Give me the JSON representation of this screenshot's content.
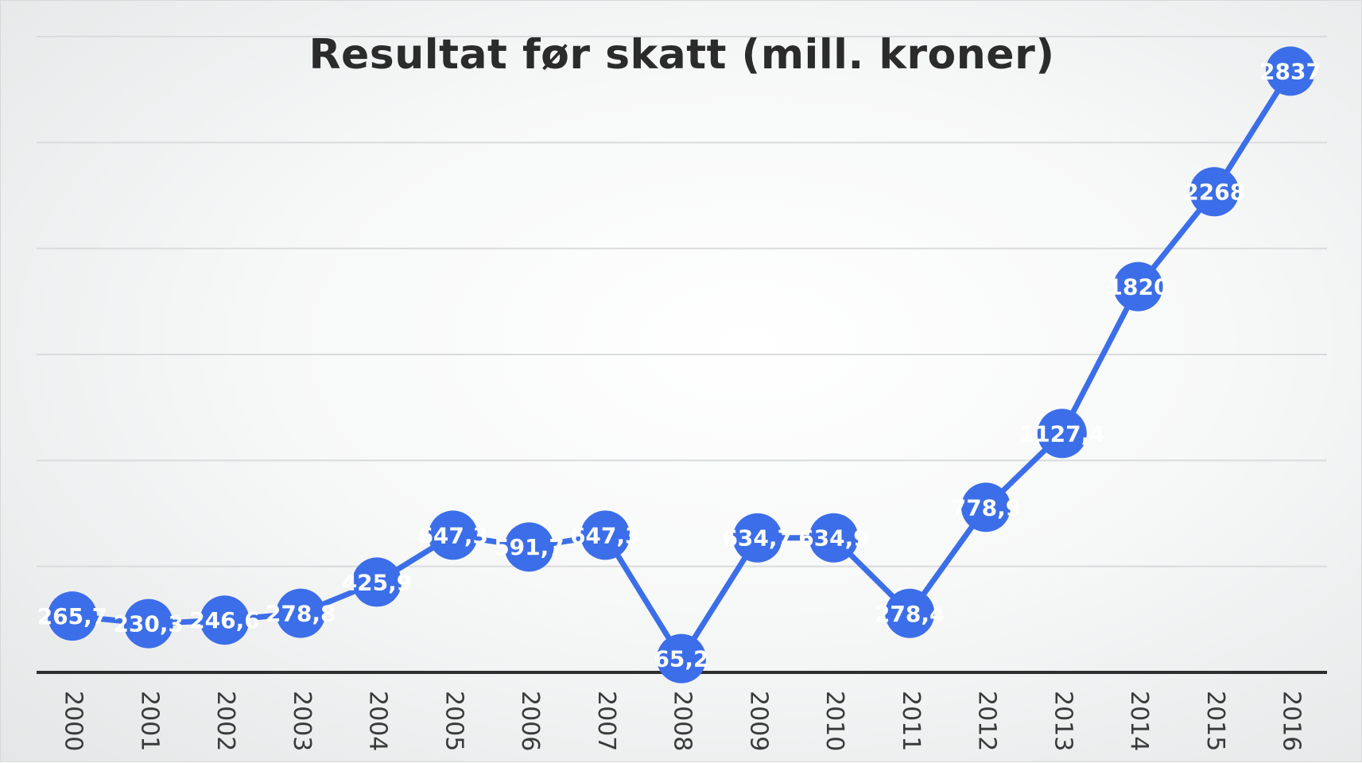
{
  "chart_data": {
    "type": "line",
    "title": "Resultat før skatt (mill. kroner)",
    "xlabel": "",
    "ylabel": "",
    "categories": [
      "2000",
      "2001",
      "2002",
      "2003",
      "2004",
      "2005",
      "2006",
      "2007",
      "2008",
      "2009",
      "2010",
      "2011",
      "2012",
      "2013",
      "2014",
      "2015",
      "2016"
    ],
    "values": [
      265.7,
      230.3,
      246.6,
      278.8,
      425.9,
      647.3,
      591.7,
      647.3,
      65.2,
      634.7,
      634.9,
      278.4,
      778.9,
      1127.4,
      1820,
      2268,
      2837
    ],
    "data_labels": [
      "265,7",
      "230,3",
      "246,6",
      "278,8",
      "425,9",
      "647,3",
      "591,7",
      "647,3",
      "65,2",
      "634,7",
      "634,9",
      "278,4",
      "778,9",
      "1127,4",
      "1820",
      "2268",
      "2837"
    ],
    "ylim": [
      0,
      3000
    ],
    "grid": true,
    "legend": "none",
    "colors": {
      "line": "#3b6ee8",
      "marker": "#3b6ee8",
      "axis": "#2f2f2f",
      "grid": "#d9dbdc"
    }
  }
}
